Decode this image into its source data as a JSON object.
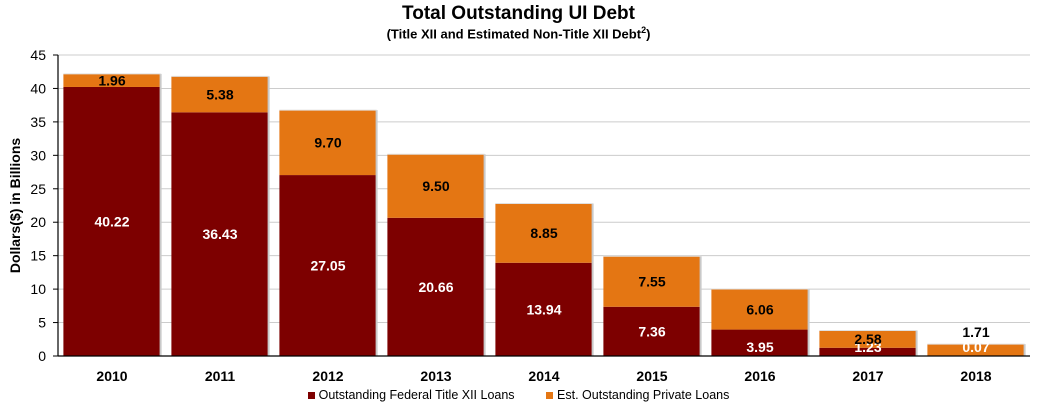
{
  "colors": {
    "federal": "#7d0000",
    "private": "#e47613",
    "grid": "#cccccc",
    "axis": "#000000"
  },
  "chart_data": {
    "type": "bar",
    "stacked": true,
    "title": "Total Outstanding UI Debt",
    "subtitle_text": "(Title XII and Estimated Non-Title XII Debt",
    "subtitle_sup": "2",
    "subtitle_end": ")",
    "ylabel": "Dollars($) in Billions",
    "xlabel": "",
    "ylim": [
      0,
      45
    ],
    "yticks": [
      0,
      5,
      10,
      15,
      20,
      25,
      30,
      35,
      40,
      45
    ],
    "grid": true,
    "legend_position": "bottom",
    "categories": [
      "2010",
      "2011",
      "2012",
      "2013",
      "2014",
      "2015",
      "2016",
      "2017",
      "2018"
    ],
    "series": [
      {
        "name": "Outstanding Federal Title XII Loans",
        "values": [
          40.22,
          36.43,
          27.05,
          20.66,
          13.94,
          7.36,
          3.95,
          1.23,
          0.07
        ],
        "labels": [
          "40.22",
          "36.43",
          "27.05",
          "20.66",
          "13.94",
          "7.36",
          "3.95",
          "1.23",
          "0.07"
        ]
      },
      {
        "name": "Est. Outstanding Private Loans",
        "values": [
          1.96,
          5.38,
          9.7,
          9.5,
          8.85,
          7.55,
          6.06,
          2.58,
          1.71
        ],
        "labels": [
          "1.96",
          "5.38",
          "9.70",
          "9.50",
          "8.85",
          "7.55",
          "6.06",
          "2.58",
          "1.71"
        ]
      }
    ]
  }
}
